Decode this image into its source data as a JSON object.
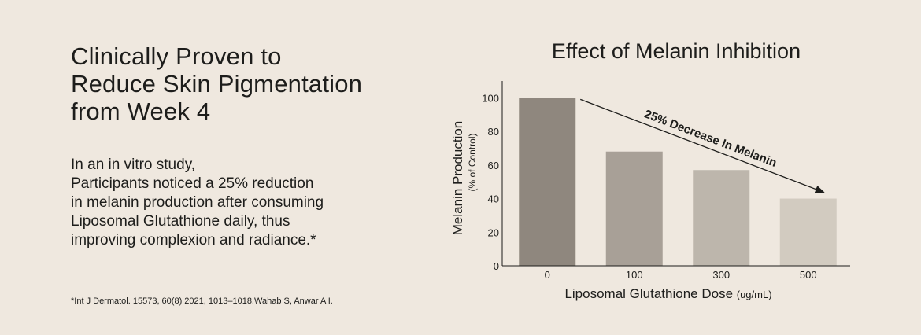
{
  "headline": [
    "Clinically Proven to",
    "Reduce Skin Pigmentation",
    "from Week 4"
  ],
  "body_lines": [
    "In an in vitro study,",
    "Participants noticed a 25% reduction",
    "in melanin production after consuming",
    "Liposomal Glutathione daily, thus",
    "improving complexion and radiance.*"
  ],
  "footnote": "*Int J Dermatol. 15573, 60(8) 2021, 1013–1018.Wahab S, Anwar A I.",
  "chart_data": {
    "type": "bar",
    "title": "Effect of Melanin Inhibition",
    "categories": [
      "0",
      "100",
      "300",
      "500"
    ],
    "values": [
      100,
      68,
      57,
      40
    ],
    "xlabel": "Liposomal Glutathione Dose",
    "xlabel_unit": "(ug/mL)",
    "ylabel": "Melanin Production",
    "ylabel_sub": "(% of Control)",
    "yticks": [
      0,
      20,
      40,
      60,
      80,
      100
    ],
    "ylim": [
      0,
      110
    ],
    "grid": false,
    "bar_colors": [
      "#8f877e",
      "#a8a097",
      "#bdb6ac",
      "#d2cbc0"
    ],
    "annotation": "25% Decrease In Melanin"
  }
}
